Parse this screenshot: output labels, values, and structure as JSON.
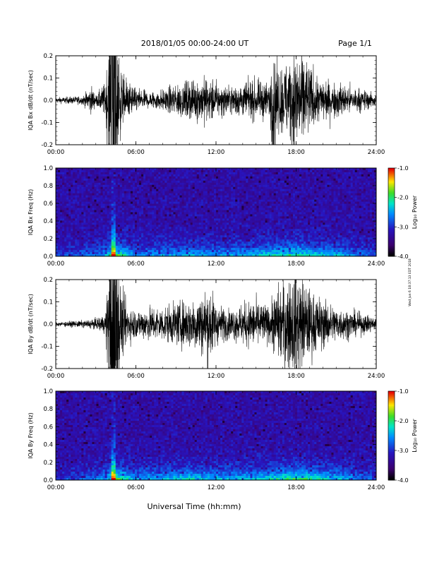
{
  "header": {
    "title": "2018/01/05  00:00-24:00 UT",
    "page_label": "Page 1/1"
  },
  "footer": {
    "xlabel": "Universal Time (hh:mm)",
    "side_note": "Wed Jun 6 18:37:13 EDT 2018"
  },
  "chart_data": [
    {
      "type": "line",
      "title": "",
      "ylabel": "IQA Bx dB/dt (nT/sec)",
      "xlabel": "",
      "xlim": [
        0,
        24
      ],
      "ylim": [
        -0.2,
        0.2
      ],
      "x_tick_labels": [
        "00:00",
        "06:00",
        "12:00",
        "18:00",
        "24:00"
      ],
      "y_tick_labels": [
        "0.2",
        "0.1",
        "0.0",
        "-0.1",
        "-0.2"
      ],
      "grid": false,
      "series": [
        {
          "hours": [
            0,
            1,
            2,
            2.7,
            3,
            3.7,
            4.05,
            4.3,
            4.5,
            4.9,
            5.3,
            6,
            7,
            8,
            8.6,
            9.5,
            10.5,
            11.5,
            12,
            13,
            14,
            15,
            16,
            16.3,
            16.6,
            17,
            17.5,
            18,
            18.5,
            19,
            19.5,
            20,
            21,
            22,
            23,
            24
          ],
          "amplitude": [
            0.008,
            0.01,
            0.012,
            0.04,
            0.014,
            0.05,
            0.2,
            0.2,
            0.2,
            0.09,
            0.06,
            0.03,
            0.025,
            0.03,
            0.04,
            0.05,
            0.06,
            0.07,
            0.05,
            0.04,
            0.05,
            0.055,
            0.05,
            0.2,
            0.09,
            0.1,
            0.13,
            0.15,
            0.14,
            0.1,
            0.07,
            0.06,
            0.05,
            0.04,
            0.03,
            0.02
          ]
        }
      ]
    },
    {
      "type": "heatmap",
      "title": "",
      "ylabel": "IQA Bx Freq (Hz)",
      "xlim": [
        0,
        24
      ],
      "ylim": [
        0,
        1
      ],
      "x_tick_labels": [
        "00:00",
        "06:00",
        "12:00",
        "18:00",
        "24:00"
      ],
      "y_tick_labels": [
        "1.0",
        "0.8",
        "0.6",
        "0.4",
        "0.2",
        "0.0"
      ],
      "colorbar": {
        "label": "Log₁₀ Power",
        "range": [
          -4.0,
          -1.0
        ],
        "tick_labels": [
          "-1.0",
          "-2.0",
          "-3.0",
          "-4.0"
        ]
      },
      "activity_hours": [
        0,
        3,
        4,
        4.3,
        4.7,
        6,
        9,
        10,
        12,
        15,
        18,
        21,
        24
      ],
      "activity_level": [
        0.15,
        0.3,
        0.5,
        1.0,
        0.7,
        0.35,
        0.4,
        0.45,
        0.4,
        0.5,
        0.65,
        0.45,
        0.2
      ]
    },
    {
      "type": "line",
      "title": "",
      "ylabel": "IQA By dB/dt (nT/sec)",
      "xlabel": "",
      "xlim": [
        0,
        24
      ],
      "ylim": [
        -0.2,
        0.2
      ],
      "x_tick_labels": [
        "00:00",
        "06:00",
        "12:00",
        "18:00",
        "24:00"
      ],
      "y_tick_labels": [
        "0.2",
        "0.1",
        "0.0",
        "-0.1",
        "-0.2"
      ],
      "grid": false,
      "series": [
        {
          "hours": [
            0,
            1,
            2,
            3,
            3.7,
            4.05,
            4.3,
            4.6,
            4.9,
            5.3,
            6,
            7,
            8,
            9,
            10,
            11,
            11.5,
            12,
            13,
            14,
            15,
            16,
            16.5,
            17,
            17.5,
            18,
            18.5,
            19,
            20,
            21,
            22,
            23,
            24
          ],
          "amplitude": [
            0.006,
            0.008,
            0.01,
            0.015,
            0.03,
            0.2,
            0.2,
            0.2,
            0.1,
            0.06,
            0.04,
            0.05,
            0.05,
            0.06,
            0.07,
            0.09,
            0.12,
            0.06,
            0.04,
            0.06,
            0.07,
            0.05,
            0.1,
            0.12,
            0.14,
            0.16,
            0.13,
            0.1,
            0.07,
            0.05,
            0.04,
            0.03,
            0.02
          ]
        }
      ]
    },
    {
      "type": "heatmap",
      "title": "",
      "ylabel": "IQA By Freq (Hz)",
      "xlim": [
        0,
        24
      ],
      "ylim": [
        0,
        1
      ],
      "x_tick_labels": [
        "00:00",
        "06:00",
        "12:00",
        "18:00",
        "24:00"
      ],
      "y_tick_labels": [
        "1.0",
        "0.8",
        "0.6",
        "0.4",
        "0.2",
        "0.0"
      ],
      "colorbar": {
        "label": "Log₁₀ Power",
        "range": [
          -4.0,
          -1.0
        ],
        "tick_labels": [
          "-1.0",
          "-2.0",
          "-3.0",
          "-4.0"
        ]
      },
      "activity_hours": [
        0,
        3,
        4,
        4.3,
        4.7,
        6,
        9,
        10,
        12,
        15,
        18,
        21,
        24
      ],
      "activity_level": [
        0.15,
        0.3,
        0.5,
        1.0,
        0.7,
        0.4,
        0.5,
        0.55,
        0.45,
        0.5,
        0.7,
        0.5,
        0.2
      ]
    }
  ]
}
